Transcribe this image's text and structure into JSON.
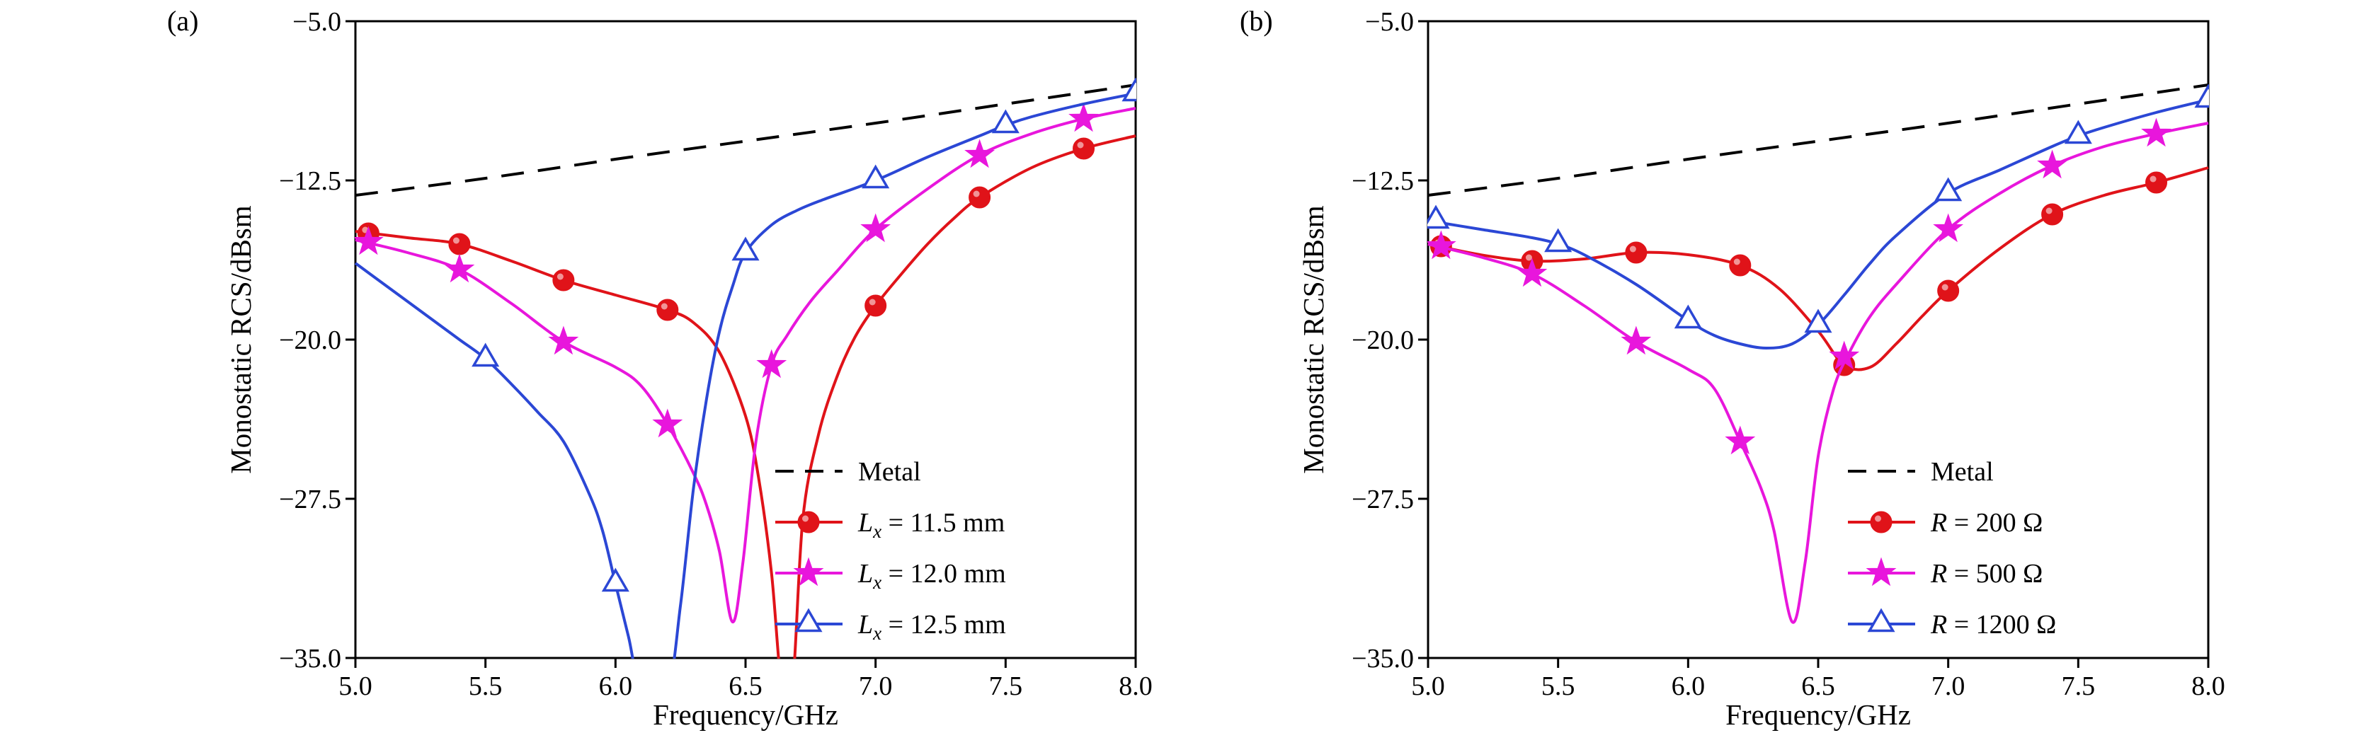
{
  "figure": {
    "background": "#ffffff",
    "axis_color": "#000000"
  },
  "chart_data": [
    {
      "type": "line",
      "tag": "(a)",
      "xlabel": "Frequency/GHz",
      "ylabel": "Monostatic RCS/dBsm",
      "xlim": [
        5.0,
        8.0
      ],
      "ylim": [
        -35.0,
        -5.0
      ],
      "xticks": [
        5.0,
        5.5,
        6.0,
        6.5,
        7.0,
        7.5,
        8.0
      ],
      "xtick_labels": [
        "5.0",
        "5.5",
        "6.0",
        "6.5",
        "7.0",
        "7.5",
        "8.0"
      ],
      "yticks": [
        -5.0,
        -12.5,
        -20.0,
        -27.5,
        -35.0
      ],
      "ytick_labels": [
        "−5.0",
        "−12.5",
        "−20.0",
        "−27.5",
        "−35.0"
      ],
      "grid": false,
      "legend_position": "lower-right-inside",
      "axis_color": "#000000",
      "series": [
        {
          "name": "Metal",
          "color": "#000000",
          "dashed": true,
          "marker": "none",
          "legend_var": "",
          "legend_sub": "",
          "legend_rest": "Metal",
          "points": [
            [
              5.0,
              -13.2
            ],
            [
              5.5,
              -12.4
            ],
            [
              6.0,
              -11.5
            ],
            [
              6.5,
              -10.65
            ],
            [
              7.0,
              -9.8
            ],
            [
              7.5,
              -8.9
            ],
            [
              8.0,
              -8.0
            ]
          ],
          "marker_points": []
        },
        {
          "name": "Lx = 11.5 mm",
          "color": "#e01319",
          "dashed": false,
          "marker": "circle",
          "legend_var": "L",
          "legend_sub": "x",
          "legend_rest": " = 11.5 mm",
          "points": [
            [
              5.0,
              -14.9
            ],
            [
              5.2,
              -15.2
            ],
            [
              5.4,
              -15.5
            ],
            [
              5.6,
              -16.3
            ],
            [
              5.8,
              -17.2
            ],
            [
              6.0,
              -17.9
            ],
            [
              6.2,
              -18.6
            ],
            [
              6.3,
              -19.2
            ],
            [
              6.4,
              -20.6
            ],
            [
              6.5,
              -23.6
            ],
            [
              6.55,
              -26.5
            ],
            [
              6.6,
              -31.0
            ],
            [
              6.64,
              -36.5
            ],
            [
              6.68,
              -36.5
            ],
            [
              6.72,
              -28.5
            ],
            [
              6.78,
              -24.5
            ],
            [
              6.85,
              -21.8
            ],
            [
              6.92,
              -19.9
            ],
            [
              7.0,
              -18.4
            ],
            [
              7.1,
              -16.9
            ],
            [
              7.2,
              -15.5
            ],
            [
              7.3,
              -14.3
            ],
            [
              7.4,
              -13.3
            ],
            [
              7.6,
              -11.9
            ],
            [
              7.8,
              -11.0
            ],
            [
              8.0,
              -10.4
            ]
          ],
          "marker_points": [
            [
              5.05,
              -15.0
            ],
            [
              5.4,
              -15.5
            ],
            [
              5.8,
              -17.2
            ],
            [
              6.2,
              -18.6
            ],
            [
              7.0,
              -18.4
            ],
            [
              7.4,
              -13.3
            ],
            [
              7.8,
              -11.0
            ]
          ]
        },
        {
          "name": "Lx = 12.0 mm",
          "color": "#e816dc",
          "dashed": false,
          "marker": "star",
          "legend_var": "L",
          "legend_sub": "x",
          "legend_rest": " = 12.0 mm",
          "points": [
            [
              5.0,
              -15.3
            ],
            [
              5.2,
              -15.9
            ],
            [
              5.4,
              -16.7
            ],
            [
              5.6,
              -18.3
            ],
            [
              5.8,
              -20.1
            ],
            [
              6.0,
              -21.3
            ],
            [
              6.1,
              -22.2
            ],
            [
              6.2,
              -24.0
            ],
            [
              6.3,
              -26.3
            ],
            [
              6.35,
              -27.8
            ],
            [
              6.4,
              -30.0
            ],
            [
              6.45,
              -33.3
            ],
            [
              6.49,
              -30.5
            ],
            [
              6.54,
              -24.8
            ],
            [
              6.6,
              -21.2
            ],
            [
              6.66,
              -19.8
            ],
            [
              6.75,
              -18.2
            ],
            [
              6.85,
              -16.8
            ],
            [
              7.0,
              -14.8
            ],
            [
              7.2,
              -12.9
            ],
            [
              7.4,
              -11.3
            ],
            [
              7.6,
              -10.3
            ],
            [
              7.8,
              -9.6
            ],
            [
              8.0,
              -9.1
            ]
          ],
          "marker_points": [
            [
              5.05,
              -15.4
            ],
            [
              5.4,
              -16.7
            ],
            [
              5.8,
              -20.1
            ],
            [
              6.2,
              -24.0
            ],
            [
              6.6,
              -21.2
            ],
            [
              7.0,
              -14.8
            ],
            [
              7.4,
              -11.3
            ],
            [
              7.8,
              -9.6
            ]
          ]
        },
        {
          "name": "Lx = 12.5 mm",
          "color": "#2b47d5",
          "dashed": false,
          "marker": "triangle-open",
          "legend_var": "L",
          "legend_sub": "x",
          "legend_rest": " = 12.5 mm",
          "points": [
            [
              5.0,
              -16.4
            ],
            [
              5.1,
              -17.3
            ],
            [
              5.2,
              -18.2
            ],
            [
              5.3,
              -19.1
            ],
            [
              5.4,
              -20.0
            ],
            [
              5.5,
              -20.9
            ],
            [
              5.6,
              -22.1
            ],
            [
              5.7,
              -23.4
            ],
            [
              5.8,
              -24.8
            ],
            [
              5.9,
              -27.3
            ],
            [
              5.95,
              -29.0
            ],
            [
              6.0,
              -31.5
            ],
            [
              6.05,
              -34.0
            ],
            [
              6.1,
              -36.5
            ],
            [
              6.2,
              -36.5
            ],
            [
              6.25,
              -32.5
            ],
            [
              6.3,
              -27.0
            ],
            [
              6.35,
              -22.8
            ],
            [
              6.4,
              -19.6
            ],
            [
              6.45,
              -17.5
            ],
            [
              6.5,
              -15.9
            ],
            [
              6.6,
              -14.6
            ],
            [
              6.7,
              -13.9
            ],
            [
              6.8,
              -13.4
            ],
            [
              7.0,
              -12.5
            ],
            [
              7.2,
              -11.4
            ],
            [
              7.4,
              -10.4
            ],
            [
              7.5,
              -9.9
            ],
            [
              7.6,
              -9.5
            ],
            [
              7.8,
              -8.9
            ],
            [
              8.0,
              -8.4
            ]
          ],
          "marker_points": [
            [
              5.5,
              -20.9
            ],
            [
              6.0,
              -31.5
            ],
            [
              6.5,
              -15.9
            ],
            [
              7.0,
              -12.5
            ],
            [
              7.5,
              -9.9
            ],
            [
              8.0,
              -8.4
            ]
          ]
        }
      ]
    },
    {
      "type": "line",
      "tag": "(b)",
      "xlabel": "Frequency/GHz",
      "ylabel": "Monostatic RCS/dBsm",
      "xlim": [
        5.0,
        8.0
      ],
      "ylim": [
        -35.0,
        -5.0
      ],
      "xticks": [
        5.0,
        5.5,
        6.0,
        6.5,
        7.0,
        7.5,
        8.0
      ],
      "xtick_labels": [
        "5.0",
        "5.5",
        "6.0",
        "6.5",
        "7.0",
        "7.5",
        "8.0"
      ],
      "yticks": [
        -5.0,
        -12.5,
        -20.0,
        -27.5,
        -35.0
      ],
      "ytick_labels": [
        "−5.0",
        "−12.5",
        "−20.0",
        "−27.5",
        "−35.0"
      ],
      "grid": false,
      "legend_position": "lower-right-inside",
      "axis_color": "#000000",
      "series": [
        {
          "name": "Metal",
          "color": "#000000",
          "dashed": true,
          "marker": "none",
          "legend_var": "",
          "legend_sub": "",
          "legend_rest": "Metal",
          "points": [
            [
              5.0,
              -13.2
            ],
            [
              5.5,
              -12.4
            ],
            [
              6.0,
              -11.5
            ],
            [
              6.5,
              -10.65
            ],
            [
              7.0,
              -9.8
            ],
            [
              7.5,
              -8.9
            ],
            [
              8.0,
              -8.0
            ]
          ],
          "marker_points": []
        },
        {
          "name": "R = 200 Ohm",
          "color": "#e01319",
          "dashed": false,
          "marker": "circle",
          "legend_var": "R",
          "legend_sub": "",
          "legend_rest": " = 200 Ω",
          "points": [
            [
              5.0,
              -15.5
            ],
            [
              5.2,
              -16.0
            ],
            [
              5.4,
              -16.3
            ],
            [
              5.6,
              -16.2
            ],
            [
              5.8,
              -15.9
            ],
            [
              6.0,
              -16.0
            ],
            [
              6.2,
              -16.5
            ],
            [
              6.35,
              -17.6
            ],
            [
              6.5,
              -19.6
            ],
            [
              6.6,
              -21.2
            ],
            [
              6.7,
              -21.3
            ],
            [
              6.8,
              -20.2
            ],
            [
              6.9,
              -18.9
            ],
            [
              7.0,
              -17.7
            ],
            [
              7.2,
              -15.7
            ],
            [
              7.4,
              -14.1
            ],
            [
              7.6,
              -13.2
            ],
            [
              7.8,
              -12.6
            ],
            [
              8.0,
              -11.9
            ]
          ],
          "marker_points": [
            [
              5.05,
              -15.6
            ],
            [
              5.4,
              -16.3
            ],
            [
              5.8,
              -15.9
            ],
            [
              6.2,
              -16.5
            ],
            [
              6.6,
              -21.2
            ],
            [
              7.0,
              -17.7
            ],
            [
              7.4,
              -14.1
            ],
            [
              7.8,
              -12.6
            ]
          ]
        },
        {
          "name": "R = 500 Ohm",
          "color": "#e816dc",
          "dashed": false,
          "marker": "star",
          "legend_var": "R",
          "legend_sub": "",
          "legend_rest": " = 500 Ω",
          "points": [
            [
              5.0,
              -15.5
            ],
            [
              5.2,
              -16.1
            ],
            [
              5.4,
              -16.9
            ],
            [
              5.6,
              -18.4
            ],
            [
              5.8,
              -20.1
            ],
            [
              6.0,
              -21.4
            ],
            [
              6.1,
              -22.3
            ],
            [
              6.2,
              -24.8
            ],
            [
              6.28,
              -27.0
            ],
            [
              6.33,
              -29.0
            ],
            [
              6.4,
              -33.3
            ],
            [
              6.45,
              -30.5
            ],
            [
              6.5,
              -25.5
            ],
            [
              6.56,
              -22.3
            ],
            [
              6.62,
              -20.6
            ],
            [
              6.7,
              -18.9
            ],
            [
              6.8,
              -17.4
            ],
            [
              7.0,
              -14.8
            ],
            [
              7.2,
              -13.1
            ],
            [
              7.4,
              -11.8
            ],
            [
              7.6,
              -10.9
            ],
            [
              7.8,
              -10.3
            ],
            [
              8.0,
              -9.8
            ]
          ],
          "marker_points": [
            [
              5.05,
              -15.6
            ],
            [
              5.4,
              -16.9
            ],
            [
              5.8,
              -20.1
            ],
            [
              6.2,
              -24.8
            ],
            [
              6.6,
              -20.8
            ],
            [
              7.0,
              -14.8
            ],
            [
              7.4,
              -11.8
            ],
            [
              7.8,
              -10.3
            ]
          ]
        },
        {
          "name": "R = 1200 Ohm",
          "color": "#2b47d5",
          "dashed": false,
          "marker": "triangle-open",
          "legend_var": "R",
          "legend_sub": "",
          "legend_rest": " = 1200 Ω",
          "points": [
            [
              5.0,
              -14.4
            ],
            [
              5.2,
              -14.8
            ],
            [
              5.4,
              -15.2
            ],
            [
              5.5,
              -15.5
            ],
            [
              5.6,
              -16.0
            ],
            [
              5.8,
              -17.4
            ],
            [
              6.0,
              -19.1
            ],
            [
              6.1,
              -19.8
            ],
            [
              6.2,
              -20.2
            ],
            [
              6.3,
              -20.4
            ],
            [
              6.4,
              -20.2
            ],
            [
              6.5,
              -19.3
            ],
            [
              6.6,
              -17.9
            ],
            [
              6.7,
              -16.4
            ],
            [
              6.8,
              -15.1
            ],
            [
              7.0,
              -13.1
            ],
            [
              7.2,
              -12.0
            ],
            [
              7.4,
              -10.9
            ],
            [
              7.5,
              -10.4
            ],
            [
              7.6,
              -10.0
            ],
            [
              7.8,
              -9.3
            ],
            [
              8.0,
              -8.7
            ]
          ],
          "marker_points": [
            [
              5.03,
              -14.4
            ],
            [
              5.5,
              -15.5
            ],
            [
              6.0,
              -19.1
            ],
            [
              6.5,
              -19.3
            ],
            [
              7.0,
              -13.1
            ],
            [
              7.5,
              -10.4
            ],
            [
              8.0,
              -8.7
            ]
          ]
        }
      ]
    }
  ]
}
